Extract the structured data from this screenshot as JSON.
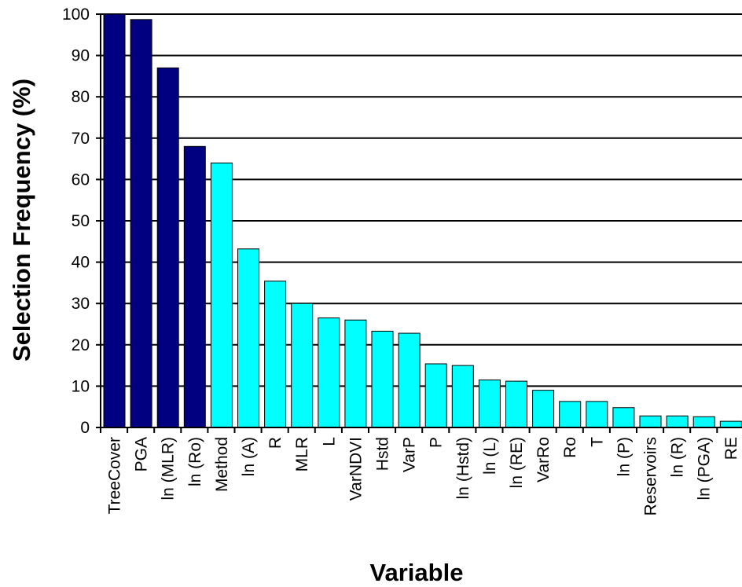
{
  "chart_data": {
    "type": "bar",
    "xlabel": "Variable",
    "ylabel": "Selection Frequency (%)",
    "ylim": [
      0,
      100
    ],
    "yticks": [
      0,
      10,
      20,
      30,
      40,
      50,
      60,
      70,
      80,
      90,
      100
    ],
    "grid": true,
    "categories": [
      "TreeCover",
      "PGA",
      "ln (MLR)",
      "ln (Ro)",
      "Method",
      "ln (A)",
      "R",
      "MLR",
      "L",
      "VarNDVI",
      "Hstd",
      "VarP",
      "P",
      "ln (Hstd)",
      "ln (L)",
      "ln (RE)",
      "VarRo",
      "Ro",
      "T",
      "ln (P)",
      "Reservoirs",
      "ln (R)",
      "ln (PGA)",
      "RE"
    ],
    "values": [
      100,
      98.7,
      87,
      68,
      64,
      43.2,
      35.4,
      30,
      26.5,
      26,
      23.3,
      22.8,
      15.4,
      15,
      11.5,
      11.2,
      9,
      6.3,
      6.3,
      4.8,
      2.8,
      2.8,
      2.6,
      1.5
    ],
    "colors": {
      "highlight": "#000080",
      "normal": "#00ffff",
      "bar_outline": "#000000",
      "grid": "#000000"
    },
    "highlight_count": 4
  }
}
